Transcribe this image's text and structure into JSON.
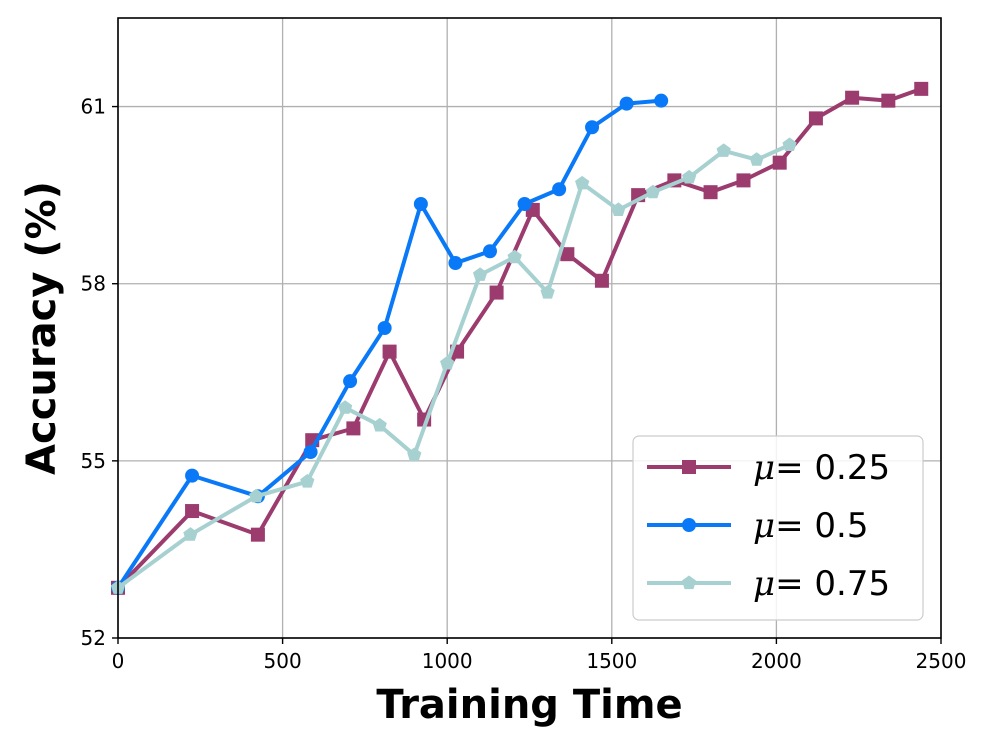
{
  "chart_data": {
    "type": "line",
    "title": "",
    "xlabel": "Training Time",
    "ylabel": "Accuracy (%)",
    "xlim": [
      0,
      2500
    ],
    "ylim": [
      52,
      62.5
    ],
    "xticks": [
      0,
      500,
      1000,
      1500,
      2000,
      2500
    ],
    "yticks": [
      52,
      55,
      58,
      61
    ],
    "grid": true,
    "legend_position": "lower-right",
    "series": [
      {
        "name": "μ = 0.25",
        "mu_symbol": "μ",
        "mu_value": "= 0.25",
        "color": "#9b3b6e",
        "marker": "square",
        "x": [
          0,
          225,
          425,
          590,
          715,
          825,
          930,
          1030,
          1150,
          1260,
          1365,
          1470,
          1580,
          1690,
          1800,
          1900,
          2010,
          2120,
          2230,
          2340,
          2440
        ],
        "y": [
          52.85,
          54.15,
          53.75,
          55.35,
          55.55,
          56.85,
          55.7,
          56.85,
          57.85,
          59.25,
          58.5,
          58.05,
          59.5,
          59.75,
          59.55,
          59.75,
          60.05,
          60.8,
          61.15,
          61.1,
          61.3
        ]
      },
      {
        "name": "μ = 0.5",
        "mu_symbol": "μ",
        "mu_value": "= 0.5",
        "color": "#0a79f7",
        "marker": "circle",
        "x": [
          0,
          225,
          425,
          585,
          705,
          810,
          920,
          1025,
          1130,
          1235,
          1340,
          1440,
          1545,
          1650
        ],
        "y": [
          52.85,
          54.75,
          54.4,
          55.15,
          56.35,
          57.25,
          59.35,
          58.35,
          58.55,
          59.35,
          59.6,
          60.65,
          61.05,
          61.1
        ]
      },
      {
        "name": "μ = 0.75",
        "mu_symbol": "μ",
        "mu_value": "= 0.75",
        "color": "#a6d1d0",
        "marker": "pentagon",
        "x": [
          0,
          220,
          420,
          575,
          690,
          795,
          900,
          1000,
          1100,
          1205,
          1305,
          1410,
          1520,
          1625,
          1735,
          1840,
          1940,
          2040
        ],
        "y": [
          52.85,
          53.75,
          54.4,
          54.65,
          55.9,
          55.6,
          55.1,
          56.65,
          58.15,
          58.45,
          57.85,
          59.7,
          59.25,
          59.55,
          59.8,
          60.25,
          60.1,
          60.35
        ]
      }
    ]
  }
}
